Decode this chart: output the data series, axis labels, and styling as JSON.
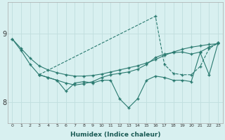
{
  "xlabel": "Humidex (Indice chaleur)",
  "bg_color": "#d8f0f0",
  "line_color": "#2a7a70",
  "grid_color": "#c0dede",
  "x": [
    0,
    1,
    2,
    3,
    4,
    5,
    6,
    7,
    8,
    9,
    10,
    11,
    12,
    13,
    14,
    15,
    16,
    17,
    18,
    19,
    20,
    21,
    22,
    23
  ],
  "line1": [
    8.92,
    8.78,
    8.64,
    8.53,
    8.47,
    8.43,
    8.4,
    8.38,
    8.38,
    8.39,
    8.41,
    8.44,
    8.47,
    8.5,
    8.53,
    8.57,
    8.62,
    8.68,
    8.73,
    8.77,
    8.8,
    8.82,
    8.84,
    8.85
  ],
  "line2": [
    8.92,
    8.75,
    8.55,
    8.4,
    8.36,
    8.32,
    8.28,
    8.25,
    8.27,
    8.3,
    8.36,
    8.4,
    8.42,
    8.44,
    8.48,
    8.55,
    8.65,
    8.7,
    8.72,
    8.73,
    8.7,
    8.73,
    8.8,
    8.86
  ],
  "line3_x": [
    3,
    4,
    5,
    6,
    7,
    8,
    9,
    10,
    11,
    12,
    13,
    14,
    15,
    16,
    17,
    18,
    19,
    20,
    21,
    22,
    23
  ],
  "line3": [
    8.4,
    8.36,
    8.32,
    8.16,
    8.28,
    8.3,
    8.28,
    8.32,
    8.32,
    8.05,
    7.92,
    8.05,
    8.32,
    8.38,
    8.36,
    8.32,
    8.32,
    8.3,
    8.72,
    8.4,
    8.86
  ],
  "line4_x": [
    3,
    16,
    17,
    18,
    19,
    20,
    21,
    22,
    23
  ],
  "line4": [
    8.4,
    9.25,
    8.55,
    8.42,
    8.4,
    8.4,
    8.52,
    8.78,
    8.86
  ],
  "ylim": [
    7.7,
    9.45
  ],
  "yticks": [
    8,
    9
  ],
  "xlim": [
    -0.5,
    23.5
  ]
}
